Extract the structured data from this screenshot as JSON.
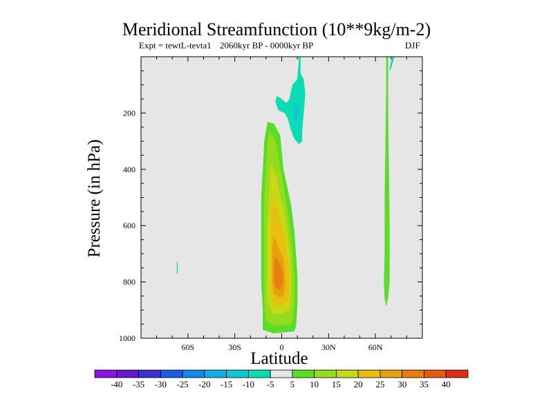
{
  "chart_data": {
    "type": "contour",
    "title": "Meridional Streamfunction (10**9kg/m-2)",
    "subtitle_left": "Expt = tewtL-tevta1",
    "subtitle_center": "2060kyr BP - 0000kyr BP",
    "subtitle_right": "DJF",
    "xlabel": "Latitude",
    "ylabel": "Pressure (in hPa)",
    "xlim": [
      -90,
      90
    ],
    "ylim": [
      1000,
      0
    ],
    "x_ticks": [
      {
        "value": -60,
        "label": "60S"
      },
      {
        "value": -30,
        "label": "30S"
      },
      {
        "value": 0,
        "label": "0"
      },
      {
        "value": 30,
        "label": "30N"
      },
      {
        "value": 60,
        "label": "60N"
      }
    ],
    "y_ticks": [
      {
        "value": 200,
        "label": "200"
      },
      {
        "value": 400,
        "label": "400"
      },
      {
        "value": 600,
        "label": "600"
      },
      {
        "value": 800,
        "label": "800"
      },
      {
        "value": 1000,
        "label": "1000"
      }
    ],
    "colorbar": {
      "labels": [
        "-40",
        "-35",
        "-30",
        "-25",
        "-20",
        "-15",
        "-10",
        "-5",
        "5",
        "10",
        "15",
        "20",
        "25",
        "30",
        "35",
        "40"
      ],
      "colors": [
        "#8c14e0",
        "#6418d6",
        "#3c30d2",
        "#1e5ae6",
        "#1687e6",
        "#10aee6",
        "#0ec8d2",
        "#0cdcb4",
        "#e6e6e6",
        "#5adc28",
        "#96dc1e",
        "#c8d814",
        "#e6c00c",
        "#e6a00c",
        "#e67e10",
        "#e65a10",
        "#dc3214"
      ],
      "neutral_color": "#e6e6e6"
    },
    "regions": [
      {
        "level": "5",
        "color": "#5adc28",
        "points": [
          [
            -9,
            232
          ],
          [
            -5,
            238
          ],
          [
            -1,
            280
          ],
          [
            0,
            340
          ],
          [
            1,
            400
          ],
          [
            3,
            450
          ],
          [
            6,
            530
          ],
          [
            8,
            620
          ],
          [
            9,
            700
          ],
          [
            10,
            780
          ],
          [
            10,
            880
          ],
          [
            9,
            960
          ],
          [
            8,
            975
          ],
          [
            -5,
            982
          ],
          [
            -12,
            970
          ],
          [
            -12,
            900
          ],
          [
            -13,
            800
          ],
          [
            -13,
            700
          ],
          [
            -13,
            600
          ],
          [
            -13,
            500
          ],
          [
            -12,
            400
          ],
          [
            -11,
            300
          ]
        ]
      },
      {
        "level": "10",
        "color": "#96dc1e",
        "points": [
          [
            -8,
            265
          ],
          [
            -4,
            300
          ],
          [
            -2,
            360
          ],
          [
            0,
            430
          ],
          [
            2,
            490
          ],
          [
            4,
            560
          ],
          [
            6,
            640
          ],
          [
            7,
            700
          ],
          [
            8,
            780
          ],
          [
            8,
            870
          ],
          [
            7,
            930
          ],
          [
            6,
            950
          ],
          [
            -4,
            955
          ],
          [
            -10,
            940
          ],
          [
            -11,
            870
          ],
          [
            -11,
            800
          ],
          [
            -11,
            700
          ],
          [
            -11,
            600
          ],
          [
            -11,
            500
          ],
          [
            -10,
            400
          ],
          [
            -9,
            310
          ]
        ]
      },
      {
        "level": "15",
        "color": "#c8d814",
        "points": [
          [
            -7,
            380
          ],
          [
            -4,
            420
          ],
          [
            -2,
            470
          ],
          [
            1,
            540
          ],
          [
            3,
            600
          ],
          [
            5,
            680
          ],
          [
            6,
            760
          ],
          [
            6,
            850
          ],
          [
            5,
            900
          ],
          [
            0,
            915
          ],
          [
            -6,
            910
          ],
          [
            -9,
            870
          ],
          [
            -9,
            780
          ],
          [
            -9,
            700
          ],
          [
            -9,
            600
          ],
          [
            -8,
            500
          ]
        ]
      },
      {
        "level": "20",
        "color": "#e6c00c",
        "points": [
          [
            -6,
            500
          ],
          [
            -3,
            540
          ],
          [
            0,
            600
          ],
          [
            2,
            660
          ],
          [
            4,
            720
          ],
          [
            5,
            800
          ],
          [
            4,
            870
          ],
          [
            0,
            885
          ],
          [
            -5,
            880
          ],
          [
            -7,
            840
          ],
          [
            -7,
            760
          ],
          [
            -7,
            680
          ],
          [
            -7,
            600
          ]
        ]
      },
      {
        "level": "25",
        "color": "#e6a00c",
        "points": [
          [
            -5,
            640
          ],
          [
            -2,
            680
          ],
          [
            1,
            720
          ],
          [
            2,
            770
          ],
          [
            2,
            820
          ],
          [
            1,
            850
          ],
          [
            -2,
            855
          ],
          [
            -5,
            840
          ],
          [
            -6,
            790
          ],
          [
            -6,
            730
          ],
          [
            -6,
            680
          ]
        ]
      },
      {
        "level": "30",
        "color": "#e67e10",
        "points": [
          [
            -4,
            710
          ],
          [
            -2,
            730
          ],
          [
            0,
            755
          ],
          [
            1,
            790
          ],
          [
            0,
            820
          ],
          [
            -2,
            830
          ],
          [
            -4,
            815
          ],
          [
            -5,
            780
          ],
          [
            -5,
            745
          ]
        ]
      },
      {
        "level": "-5",
        "color": "#0cdcb4",
        "points": [
          [
            11,
            0
          ],
          [
            12,
            0
          ],
          [
            12,
            60
          ],
          [
            14,
            80
          ],
          [
            15,
            130
          ],
          [
            14,
            200
          ],
          [
            13,
            260
          ],
          [
            13,
            300
          ],
          [
            11,
            310
          ],
          [
            8,
            290
          ],
          [
            6,
            260
          ],
          [
            4,
            220
          ],
          [
            2,
            200
          ],
          [
            -2,
            190
          ],
          [
            -4,
            160
          ],
          [
            -3,
            140
          ],
          [
            0,
            150
          ],
          [
            3,
            165
          ],
          [
            5,
            150
          ],
          [
            7,
            100
          ],
          [
            10,
            80
          ],
          [
            11,
            20
          ]
        ]
      },
      {
        "level": "-10",
        "color": "#0ec8d2",
        "points": [
          [
            9,
            160
          ],
          [
            11,
            170
          ],
          [
            11,
            200
          ],
          [
            9,
            230
          ],
          [
            7,
            220
          ],
          [
            8,
            190
          ]
        ]
      },
      {
        "level": "-5",
        "color": "#0cdcb4",
        "points": [
          [
            71,
            0
          ],
          [
            72,
            0
          ],
          [
            71,
            20
          ],
          [
            70,
            40
          ],
          [
            69,
            50
          ],
          [
            70,
            20
          ]
        ]
      },
      {
        "level": "-5",
        "color": "#0cdcb4",
        "points": [
          [
            -67,
            730
          ],
          [
            -66.6,
            730
          ],
          [
            -66.6,
            770
          ],
          [
            -67,
            770
          ]
        ]
      },
      {
        "level": "5",
        "color": "#5adc28",
        "points": [
          [
            67,
            0
          ],
          [
            68,
            0
          ],
          [
            68,
            200
          ],
          [
            68.5,
            400
          ],
          [
            69,
            600
          ],
          [
            69,
            800
          ],
          [
            68,
            855
          ],
          [
            67,
            885
          ],
          [
            66,
            860
          ],
          [
            65.5,
            800
          ],
          [
            66,
            700
          ],
          [
            66,
            500
          ],
          [
            66.5,
            300
          ],
          [
            67,
            100
          ]
        ]
      }
    ]
  }
}
